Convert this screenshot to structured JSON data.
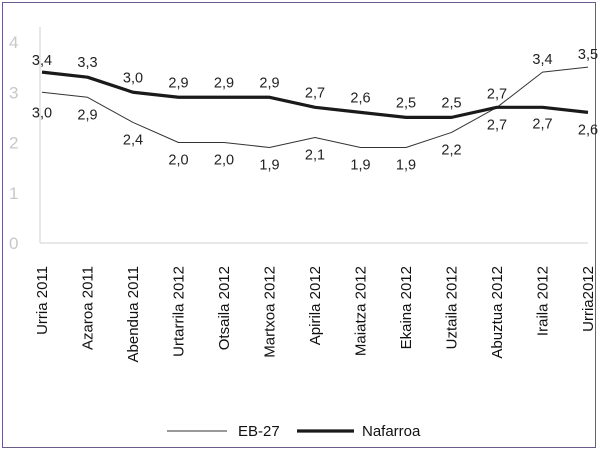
{
  "chart_data": {
    "type": "line",
    "categories": [
      "Urria 2011",
      "Azaroa 2011",
      "Abendua 2011",
      "Urtarrila 2012",
      "Otsaila 2012",
      "Martxoa 2012",
      "Apirila 2012",
      "Maiatza 2012",
      "Ekaina 2012",
      "Uztaila 2012",
      "Abuztua 2012",
      "Iraila 2012",
      "Urria2012"
    ],
    "series": [
      {
        "name": "EB-27",
        "values": [
          3.0,
          2.9,
          2.4,
          2.0,
          2.0,
          1.9,
          2.1,
          1.9,
          1.9,
          2.2,
          2.7,
          3.4,
          3.5
        ],
        "labels": [
          "3,0",
          "2,9",
          "2,4",
          "2,0",
          "2,0",
          "1,9",
          "2,1",
          "1,9",
          "1,9",
          "2,2",
          "2,7",
          "3,4",
          "3,5"
        ],
        "color": "#333333"
      },
      {
        "name": "Nafarroa",
        "values": [
          3.4,
          3.3,
          3.0,
          2.9,
          2.9,
          2.9,
          2.7,
          2.6,
          2.5,
          2.5,
          2.7,
          2.7,
          2.6
        ],
        "labels": [
          "3,4",
          "3,3",
          "3,0",
          "2,9",
          "2,9",
          "2,9",
          "2,7",
          "2,6",
          "2,5",
          "2,5",
          "2,7",
          "2,7",
          "2,6"
        ],
        "color": "#1a1a1a"
      }
    ],
    "yticks": [
      "0",
      "1",
      "2",
      "3",
      "4"
    ],
    "ylim": [
      0,
      4
    ],
    "grid": false,
    "legend": "bottom"
  }
}
